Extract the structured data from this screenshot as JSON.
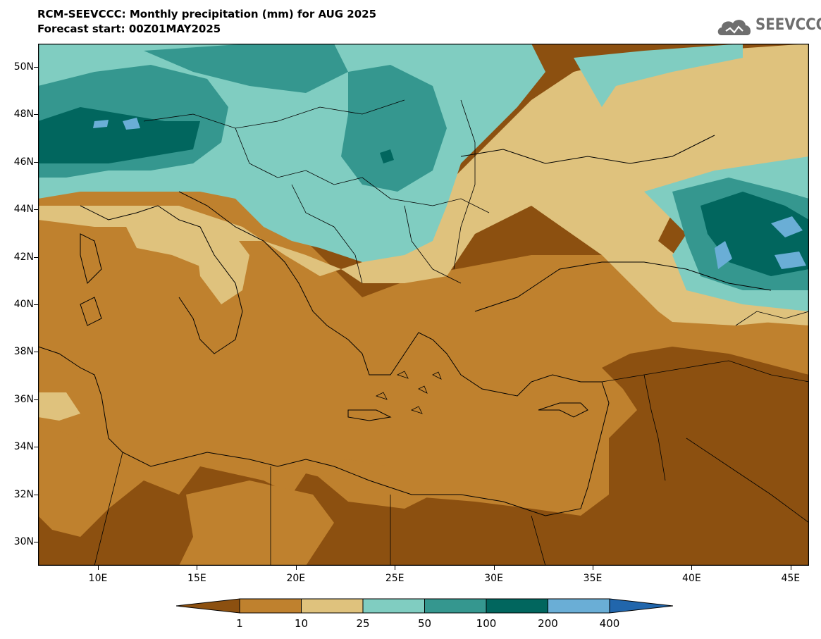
{
  "title_line1": "RCM-SEEVCCC: Monthly precipitation (mm) for AUG 2025",
  "title_line2": "Forecast start: 00Z01MAY2025",
  "logo_text": "SEEVCCC",
  "lat_labels": [
    "50N",
    "48N",
    "46N",
    "44N",
    "42N",
    "40N",
    "38N",
    "36N",
    "34N",
    "32N",
    "30N"
  ],
  "lon_labels": [
    "10E",
    "15E",
    "20E",
    "25E",
    "30E",
    "35E",
    "40E",
    "45E"
  ],
  "legend": {
    "thresholds": [
      "1",
      "10",
      "25",
      "50",
      "100",
      "200",
      "400"
    ],
    "colors": [
      "#8c5010",
      "#bf812e",
      "#dfc27d",
      "#80cdc1",
      "#35978f",
      "#01665e",
      "#6aaed6",
      "#2166ac"
    ]
  }
}
